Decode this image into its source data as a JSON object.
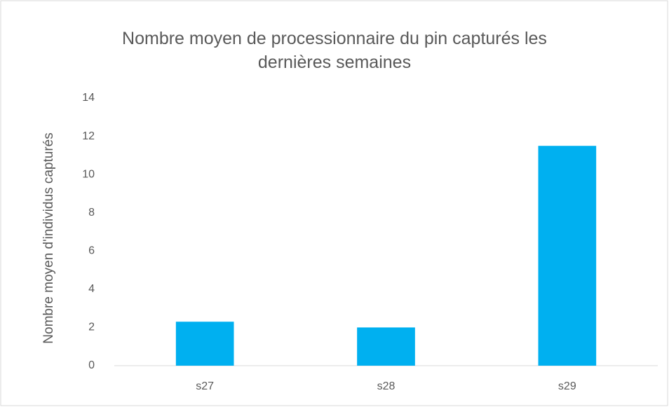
{
  "chart_data": {
    "type": "bar",
    "title": "Nombre moyen de processionnaire du pin capturés les dernières semaines",
    "y_label": "Nombre moyen d'individus capturés",
    "categories": [
      "s27",
      "s28",
      "s29"
    ],
    "values": [
      2.3,
      2.0,
      11.5
    ],
    "color": "#00b0f0",
    "ylim": [
      0,
      14
    ],
    "yticks": [
      0,
      2,
      4,
      6,
      8,
      10,
      12,
      14
    ],
    "grid": false
  }
}
